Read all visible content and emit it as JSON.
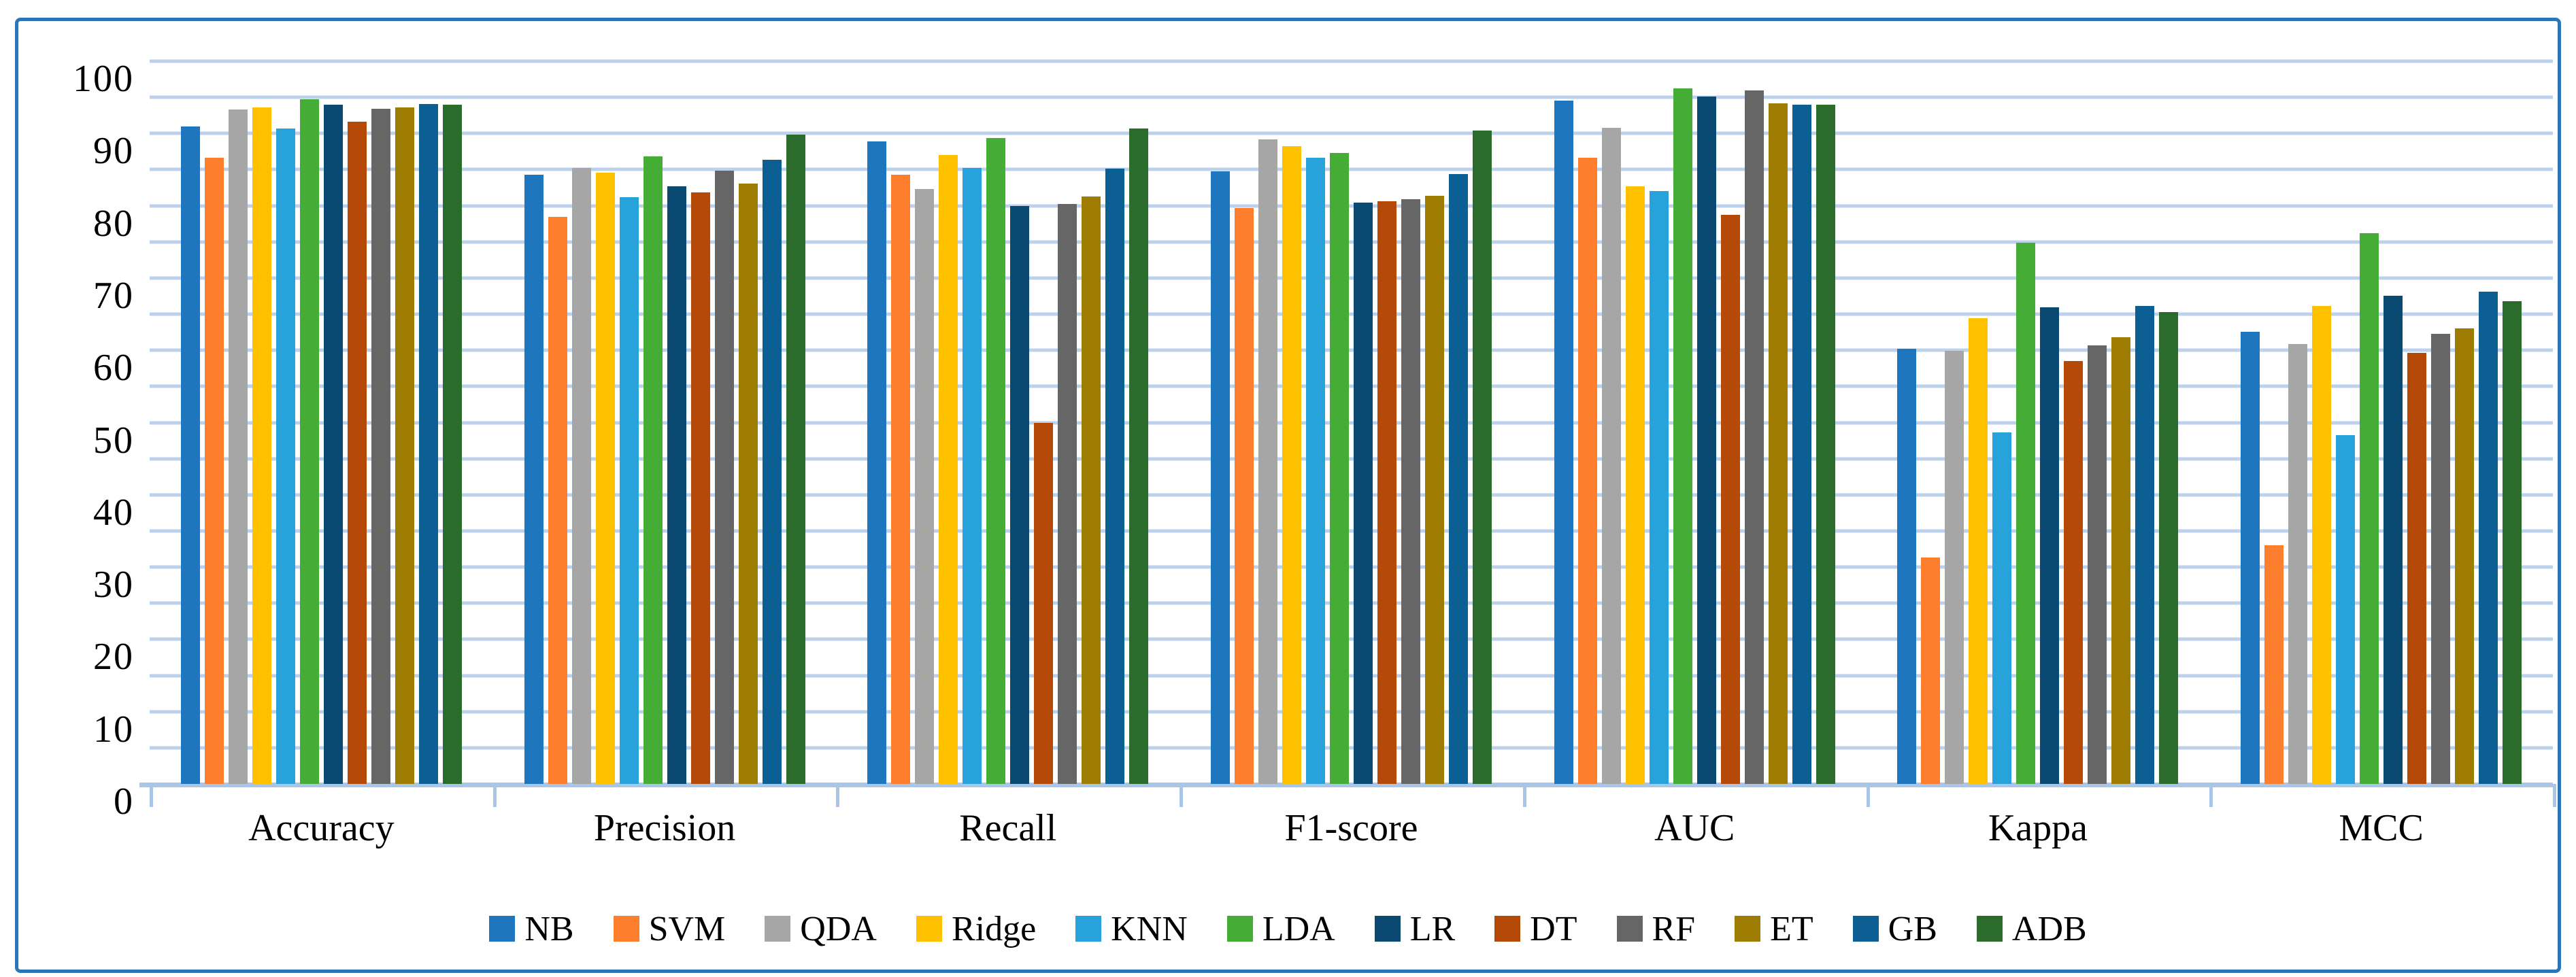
{
  "figure": {
    "border_color": "#2E75B6",
    "background_color": "#FFFFFF",
    "gridline_color": "#BCD1EC",
    "axis_line_color": "#A9C6E8",
    "text_color": "#000000"
  },
  "chart_data": {
    "type": "bar",
    "title": "",
    "xlabel": "",
    "ylabel": "",
    "ylim": [
      0,
      100
    ],
    "y_tick_step": 10,
    "y_gridline_step": 5,
    "grid": true,
    "legend_position": "bottom",
    "y_tick_labels": [
      "0",
      "10",
      "20",
      "30",
      "40",
      "50",
      "60",
      "70",
      "80",
      "90",
      "100"
    ],
    "categories": [
      "Accuracy",
      "Precision",
      "Recall",
      "F1-score",
      "AUC",
      "Kappa",
      "MCC"
    ],
    "series": [
      {
        "name": "NB",
        "color": "#1D76BE",
        "values": [
          91.0,
          84.3,
          88.9,
          84.8,
          94.5,
          60.2,
          62.6
        ]
      },
      {
        "name": "SVM",
        "color": "#FD7E2C",
        "values": [
          86.6,
          78.5,
          84.3,
          79.7,
          86.6,
          31.3,
          33.0
        ]
      },
      {
        "name": "QDA",
        "color": "#A6A6A6",
        "values": [
          93.3,
          85.2,
          82.3,
          89.2,
          90.8,
          59.9,
          60.9
        ]
      },
      {
        "name": "Ridge",
        "color": "#FFC000",
        "values": [
          93.6,
          84.6,
          87.0,
          88.2,
          82.7,
          64.4,
          66.1
        ]
      },
      {
        "name": "KNN",
        "color": "#27A2DB",
        "values": [
          90.7,
          81.2,
          85.2,
          86.6,
          82.0,
          48.6,
          48.3
        ]
      },
      {
        "name": "LDA",
        "color": "#45AD36",
        "values": [
          94.7,
          86.8,
          89.4,
          87.3,
          96.2,
          74.9,
          76.2
        ]
      },
      {
        "name": "LR",
        "color": "#0A4971",
        "values": [
          94.0,
          82.7,
          80.0,
          80.4,
          95.1,
          65.9,
          67.5
        ]
      },
      {
        "name": "DT",
        "color": "#B54A08",
        "values": [
          91.6,
          81.8,
          50.0,
          80.6,
          78.7,
          58.5,
          59.6
        ]
      },
      {
        "name": "RF",
        "color": "#666666",
        "values": [
          93.4,
          84.9,
          80.2,
          80.9,
          96.0,
          60.7,
          62.3
        ]
      },
      {
        "name": "ET",
        "color": "#9E7B01",
        "values": [
          93.6,
          83.1,
          81.3,
          81.4,
          94.2,
          61.8,
          63.0
        ]
      },
      {
        "name": "GB",
        "color": "#0B5F92",
        "values": [
          94.1,
          86.4,
          85.1,
          84.4,
          94.0,
          66.1,
          68.1
        ]
      },
      {
        "name": "ADB",
        "color": "#2B6B2B",
        "values": [
          94.0,
          89.8,
          90.7,
          90.4,
          94.0,
          65.3,
          66.8
        ]
      }
    ]
  }
}
